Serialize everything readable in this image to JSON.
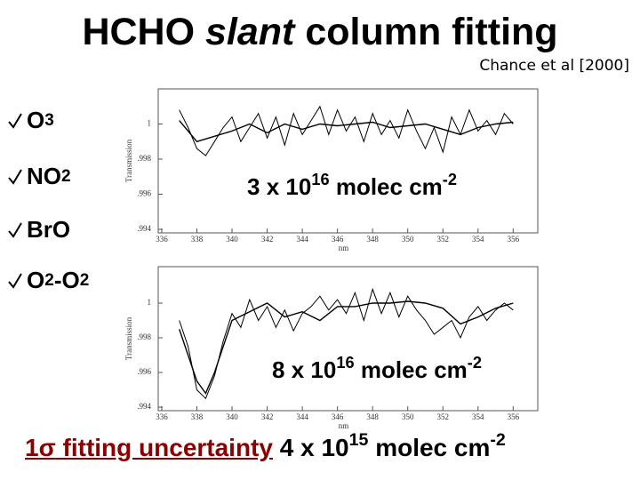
{
  "title": {
    "pre": "HCHO",
    "italic": "slant",
    "post": "column fitting"
  },
  "citation": "Chance et al [2000]",
  "bullets": [
    [
      "O",
      "3"
    ],
    [
      "NO",
      "2"
    ],
    [
      "BrO"
    ],
    [
      "O",
      "2",
      "-O",
      "2"
    ]
  ],
  "footer": {
    "num": "1",
    "sigma": "σ",
    "text": "fitting uncertainty",
    "base": "4 x 10",
    "exp": "15",
    "unit": "molec cm",
    "unit_exp": "-2"
  },
  "chart_data": [
    {
      "type": "line",
      "ylabel": "Transmission",
      "xlabel": "nm",
      "xlim": [
        335.8,
        357.4
      ],
      "xticks": [
        336,
        338,
        340,
        342,
        344,
        346,
        348,
        350,
        352,
        354,
        356
      ],
      "ylim": [
        0.9938,
        1.002
      ],
      "yticks": [
        1,
        {
          "value": 0.998,
          "label": ".998"
        },
        {
          "value": 0.996,
          "label": ".996"
        },
        {
          "value": 0.994,
          "label": ".994"
        }
      ],
      "grid": false,
      "annotation": {
        "base": "3 x 10",
        "exp": "16",
        "unit": "molec cm",
        "unit_exp": "-2"
      },
      "series": [
        {
          "color": "#000000",
          "width": 1,
          "x": [
            337,
            337.5,
            338,
            338.5,
            339,
            339.5,
            340,
            340.5,
            341,
            341.5,
            342,
            342.5,
            343,
            343.5,
            344,
            344.5,
            345,
            345.5,
            346,
            346.5,
            347,
            347.5,
            348,
            348.5,
            349,
            349.5,
            350,
            350.5,
            351,
            351.5,
            352,
            352.5,
            353,
            353.5,
            354,
            354.5,
            355,
            355.5,
            356
          ],
          "values": [
            1.0008,
            0.9998,
            0.9986,
            0.9982,
            0.999,
            0.9998,
            1.0004,
            0.999,
            0.9998,
            1.0006,
            0.9992,
            1.0004,
            0.9988,
            1.0006,
            0.9994,
            1.0002,
            1.001,
            0.9994,
            1.0008,
            0.9996,
            1.0004,
            0.999,
            1.0006,
            0.9994,
            1.0002,
            0.9992,
            1.0008,
            0.9996,
            0.9986,
            0.9998,
            0.9984,
            1.0004,
            0.9994,
            1.0008,
            0.9996,
            1.0002,
            0.9994,
            1.0006,
            1.0
          ]
        },
        {
          "color": "#000000",
          "width": 1.4,
          "x": [
            337,
            338,
            339,
            340,
            341,
            342,
            343,
            344,
            345,
            346,
            347,
            348,
            349,
            350,
            351,
            352,
            353,
            354,
            355,
            356
          ],
          "values": [
            1.0002,
            0.999,
            0.9993,
            0.9996,
            1.0,
            0.9995,
            1.0,
            0.9997,
            1.0,
            0.9999,
            1.0,
            1.0001,
            0.9998,
            0.9999,
            1.0,
            0.9997,
            0.9994,
            0.9998,
            1.0,
            1.0001
          ]
        }
      ]
    },
    {
      "type": "line",
      "ylabel": "Transmission",
      "xlabel": "nm",
      "xlim": [
        335.8,
        357.4
      ],
      "xticks": [
        336,
        338,
        340,
        342,
        344,
        346,
        348,
        350,
        352,
        354,
        356
      ],
      "ylim": [
        0.9938,
        1.0021
      ],
      "yticks": [
        1,
        {
          "value": 0.998,
          "label": ".998"
        },
        {
          "value": 0.996,
          "label": ".996"
        },
        {
          "value": 0.994,
          "label": ".994"
        }
      ],
      "grid": false,
      "annotation": {
        "base": "8 x 10",
        "exp": "16",
        "unit": "molec cm",
        "unit_exp": "-2"
      },
      "series": [
        {
          "color": "#000000",
          "width": 1,
          "x": [
            337,
            337.5,
            338,
            338.5,
            339,
            339.5,
            340,
            340.5,
            341,
            341.5,
            342,
            342.5,
            343,
            343.5,
            344,
            344.5,
            345,
            345.5,
            346,
            346.5,
            347,
            347.5,
            348,
            348.5,
            349,
            349.5,
            350,
            350.5,
            351,
            351.5,
            352,
            352.5,
            353,
            353.5,
            354,
            354.5,
            355,
            355.5,
            356
          ],
          "values": [
            0.999,
            0.9975,
            0.995,
            0.9945,
            0.9958,
            0.9978,
            0.9994,
            0.9986,
            1.0002,
            0.999,
            0.9998,
            0.9986,
            0.9996,
            0.9984,
            0.9994,
            0.9998,
            1.0004,
            0.9996,
            1.0002,
            0.9994,
            1.0006,
            0.999,
            1.0008,
            0.9994,
            1.0006,
            0.9992,
            1.0004,
            0.9996,
            0.999,
            0.9982,
            0.9986,
            0.999,
            0.998,
            0.9992,
            0.9998,
            0.999,
            0.9996,
            1.0,
            0.9996
          ]
        },
        {
          "color": "#000000",
          "width": 1.4,
          "x": [
            337,
            338,
            338.5,
            339,
            340,
            341,
            342,
            343,
            344,
            345,
            346,
            347,
            348,
            349,
            350,
            351,
            352,
            353,
            354,
            355,
            356
          ],
          "values": [
            0.9985,
            0.9955,
            0.9948,
            0.996,
            0.999,
            0.9995,
            1.0,
            0.9992,
            0.9995,
            0.999,
            0.9998,
            0.9998,
            1.0,
            1.0,
            1.0001,
            1.0,
            0.9997,
            0.9988,
            0.9992,
            0.9997,
            1.0
          ]
        }
      ]
    }
  ]
}
